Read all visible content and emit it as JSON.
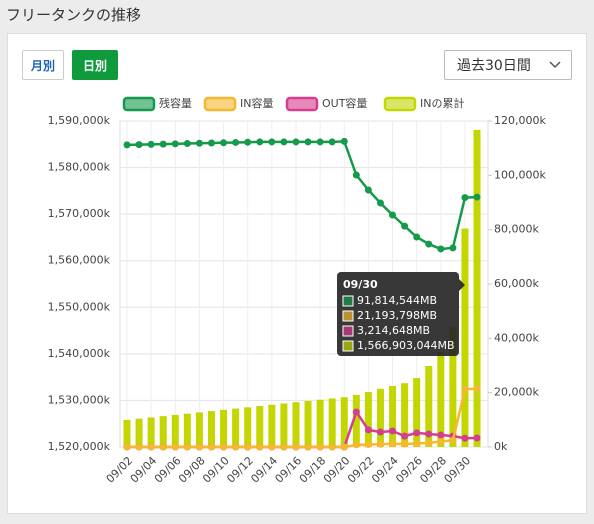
{
  "header": {
    "title": "フリータンクの推移"
  },
  "controls": {
    "monthly": "月別",
    "daily": "日別",
    "period": "過去30日間"
  },
  "tooltip": {
    "title": "09/30",
    "items": [
      "91,814,544MB",
      "21,193,798MB",
      "3,214,648MB",
      "1,566,903,044MB"
    ]
  },
  "chart_data": {
    "type": "bar",
    "categories": [
      "09/02",
      null,
      "09/04",
      null,
      "09/06",
      null,
      "09/08",
      null,
      "09/10",
      null,
      "09/12",
      null,
      "09/14",
      null,
      "09/16",
      null,
      "09/18",
      null,
      "09/20",
      null,
      "09/22",
      null,
      "09/24",
      null,
      "09/26",
      null,
      "09/28",
      null,
      "09/30",
      null
    ],
    "ylim": [
      1520000,
      1590000
    ],
    "yticks": [
      {
        "value": 1520000,
        "label": "1,520,000k"
      },
      {
        "value": 1530000,
        "label": "1,530,000k"
      },
      {
        "value": 1540000,
        "label": "1,540,000k"
      },
      {
        "value": 1550000,
        "label": "1,550,000k"
      },
      {
        "value": 1560000,
        "label": "1,560,000k"
      },
      {
        "value": 1570000,
        "label": "1,570,000k"
      },
      {
        "value": 1580000,
        "label": "1,580,000k"
      },
      {
        "value": 1590000,
        "label": "1,590,000k"
      }
    ],
    "y2lim": [
      0,
      120000
    ],
    "y2ticks": [
      {
        "value": 0,
        "label": "0k"
      },
      {
        "value": 20000,
        "label": "20,000k"
      },
      {
        "value": 40000,
        "label": "40,000k"
      },
      {
        "value": 60000,
        "label": "60,000k"
      },
      {
        "value": 80000,
        "label": "80,000k"
      },
      {
        "value": 100000,
        "label": "100,000k"
      },
      {
        "value": 120000,
        "label": "120,000k"
      }
    ],
    "grid": true,
    "series": [
      {
        "name": "残容量",
        "type": "line",
        "axis": "y2",
        "color": "#159a4c",
        "values": [
          111200,
          111300,
          111400,
          111500,
          111600,
          111700,
          111800,
          111900,
          112000,
          112100,
          112200,
          112300,
          112300,
          112300,
          112300,
          112300,
          112300,
          112300,
          112500,
          100100,
          94600,
          89800,
          85400,
          81300,
          77300,
          74700,
          72900,
          73300,
          91814.544,
          92000
        ]
      },
      {
        "name": "IN容量",
        "type": "line",
        "axis": "y2",
        "color": "#f5b82e",
        "values": [
          0,
          0,
          0,
          0,
          0,
          0,
          0,
          0,
          0,
          0,
          0,
          0,
          0,
          0,
          0,
          0,
          0,
          0,
          0,
          800,
          900,
          1000,
          1200,
          1100,
          1300,
          1500,
          2000,
          2500,
          21193.798,
          21500
        ]
      },
      {
        "name": "OUT容量",
        "type": "line",
        "axis": "y2",
        "color": "#d63c8f",
        "values": [
          0,
          0,
          0,
          0,
          0,
          0,
          0,
          0,
          0,
          0,
          0,
          0,
          0,
          0,
          0,
          0,
          0,
          0,
          0,
          12900,
          6300,
          5500,
          5900,
          4000,
          5200,
          4800,
          4400,
          4000,
          3214.648,
          3300
        ]
      },
      {
        "name": "INの累計",
        "type": "bar",
        "axis": "y",
        "color": "#c3d600",
        "values": [
          1525800,
          1526070,
          1526340,
          1526620,
          1526890,
          1527160,
          1527430,
          1527700,
          1527980,
          1528250,
          1528520,
          1528790,
          1529060,
          1529340,
          1529610,
          1529880,
          1530150,
          1530420,
          1530700,
          1531200,
          1531800,
          1532500,
          1533100,
          1533700,
          1534800,
          1537400,
          1540400,
          1545800,
          1566903.044,
          1588100
        ]
      }
    ]
  }
}
